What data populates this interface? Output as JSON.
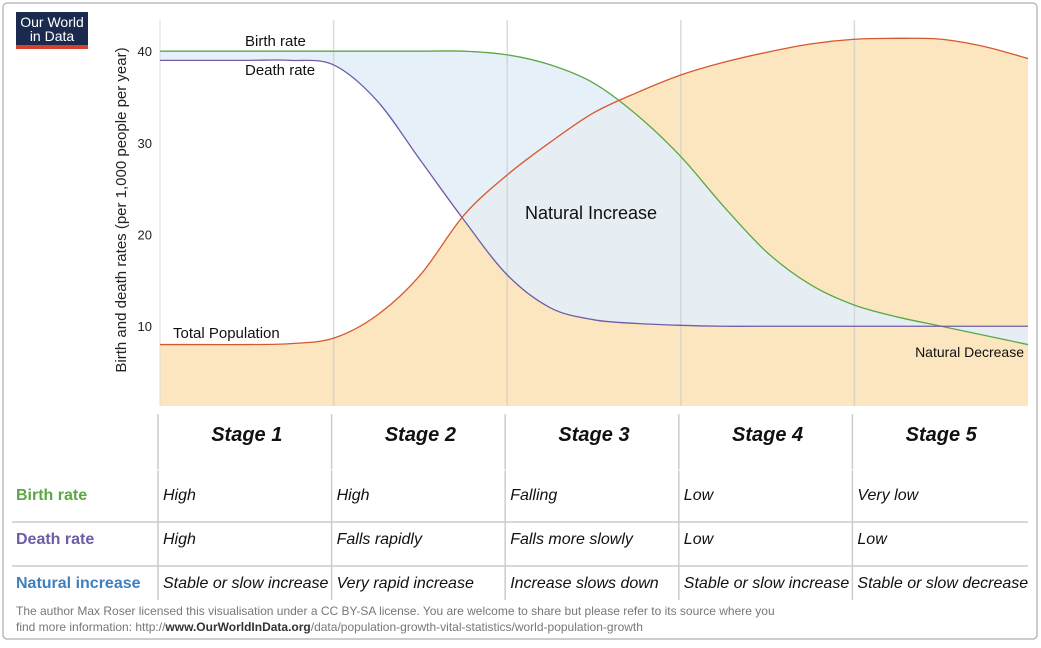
{
  "logo": [
    "Our World",
    "in Data"
  ],
  "chart_data": {
    "type": "line",
    "y_label": "Birth and death rates (per 1,000 people per year)",
    "x": [
      0,
      0.25,
      0.5,
      0.75,
      1,
      1.25,
      1.5,
      1.75,
      2,
      2.25,
      2.5,
      2.75,
      3,
      3.25,
      3.5,
      3.75,
      4,
      4.25,
      4.5,
      4.75,
      5
    ],
    "xlim": [
      0,
      5
    ],
    "ylim": [
      1.3,
      43.4
    ],
    "yticks": [
      10,
      20,
      30,
      40
    ],
    "series": [
      {
        "name": "Birth rate",
        "color": "#5aa845",
        "values": [
          40,
          40,
          40,
          40,
          40,
          40,
          40,
          40,
          39.6,
          38.5,
          36.5,
          33,
          28.5,
          23,
          18,
          14.5,
          12.3,
          11,
          10,
          9,
          8
        ]
      },
      {
        "name": "Death rate",
        "color": "#6f5ca8",
        "values": [
          39,
          39,
          39,
          39,
          38.5,
          34.6,
          28.1,
          21.6,
          15.6,
          12,
          10.7,
          10.3,
          10.1,
          10,
          10,
          10,
          10,
          10,
          10,
          10,
          10
        ]
      },
      {
        "name": "Total Population",
        "color": "#d9572e",
        "fill": "#fbe6bf",
        "values": [
          8,
          8,
          8,
          8.1,
          8.7,
          11.2,
          15.6,
          22.1,
          26.5,
          30.1,
          33.3,
          35.5,
          37.4,
          38.8,
          39.9,
          40.8,
          41.3,
          41.4,
          41.3,
          40.5,
          39.2
        ]
      }
    ],
    "between_fill": "#e4eff8",
    "annotations": [
      "Natural Increase",
      "Natural Decrease"
    ]
  },
  "table": {
    "header": [
      "Stage 1",
      "Stage 2",
      "Stage 3",
      "Stage 4",
      "Stage 5"
    ],
    "rows": [
      {
        "label": "Birth rate",
        "color": "#5aa845",
        "cells": [
          "High",
          "High",
          "Falling",
          "Low",
          "Very low"
        ]
      },
      {
        "label": "Death rate",
        "color": "#6e5ba8",
        "cells": [
          "High",
          "Falls rapidly",
          "Falls more slowly",
          "Low",
          "Low"
        ]
      },
      {
        "label": "Natural increase",
        "color": "#3f7fbf",
        "cells": [
          "Stable or slow increase",
          "Very rapid increase",
          "Increase slows down",
          "Stable or slow increase",
          "Stable or slow decrease"
        ]
      }
    ]
  },
  "footer": [
    "The author Max Roser licensed this visualisation under a CC BY-SA license. You are welcome to share but please refer to its source where you",
    "find more information: http://",
    "www.OurWorldInData.org",
    "/data/population-growth-vital-statistics/world-population-growth"
  ]
}
